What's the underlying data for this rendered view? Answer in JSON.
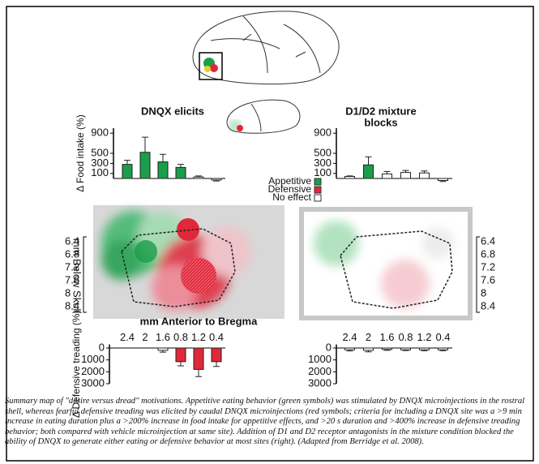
{
  "figure": {
    "left_title": "DNQX elicits",
    "right_title": [
      "D1/D2 mixture",
      "blocks"
    ],
    "legend": [
      {
        "name": "Appetitive",
        "color": "#1a9e4a"
      },
      {
        "name": "Defensive",
        "color": "#e0283a"
      },
      {
        "name": "No effect",
        "color": "#ffffff"
      }
    ],
    "map_y_label": "mm Below Skull",
    "map_y_ticks": [
      "6.4",
      "6.8",
      "7.2",
      "7.6",
      "8",
      "8.4"
    ],
    "map_x_label": "mm Anterior to Bregma",
    "caption": "Summary map of \"desire versus dread\" motivations. Appetitive eating behavior (green symbols) was stimulated by DNQX microinjections in the rostral shell, whereas fearful defensive treading was elicited by caudal DNQX microinjections (red symbols; criteria for including a DNQX site was a >9 min increase in eating duration plus a >200% increase in food intake for appetitive effects, and >20 s duration and >400% increase in defensive treading behavior; both compared with vehicle microinjection at same site). Addition of D1 and D2 receptor antagonists in the mixture condition blocked the ability of DNQX to generate either eating or defensive behavior at most sites (right). (Adapted from Berridge et al. 2008)."
  },
  "chart_data": [
    {
      "type": "bar",
      "ylabel": "Δ Food intake (%)",
      "ylim": [
        0,
        1000
      ],
      "yticks": [
        900,
        500,
        300,
        100
      ],
      "values": [
        280,
        520,
        330,
        220,
        30,
        -30
      ],
      "errors": [
        80,
        300,
        150,
        60,
        20,
        20
      ],
      "colors": [
        "#1a9e4a",
        "#1a9e4a",
        "#1a9e4a",
        "#1a9e4a",
        "#ffffff",
        "#ffffff"
      ]
    },
    {
      "type": "bar",
      "ylim": [
        0,
        1000
      ],
      "yticks": [
        900,
        500,
        300,
        100
      ],
      "values": [
        40,
        270,
        90,
        120,
        110,
        -40
      ],
      "errors": [
        10,
        160,
        50,
        40,
        40,
        20
      ],
      "colors": [
        "#ffffff",
        "#1a9e4a",
        "#ffffff",
        "#ffffff",
        "#ffffff",
        "#ffffff"
      ]
    },
    {
      "type": "bar",
      "inverted": true,
      "ylabel": "Δ Defensive treading (%)",
      "ylim": [
        -300,
        3000
      ],
      "yticks": [
        0,
        1000,
        2000,
        3000
      ],
      "categories": [
        "2.4",
        "2",
        "1.6",
        "0.8",
        "1.2",
        "0.4"
      ],
      "values": [
        null,
        null,
        200,
        1150,
        1800,
        1150
      ],
      "errors": [
        null,
        null,
        150,
        350,
        600,
        400
      ],
      "colors": [
        "#ffffff",
        "#ffffff",
        "#ffffff",
        "#e0283a",
        "#e0283a",
        "#e0283a"
      ]
    },
    {
      "type": "bar",
      "inverted": true,
      "ylim": [
        -300,
        3000
      ],
      "yticks": [
        0,
        1000,
        2000,
        3000
      ],
      "categories": [
        "2.4",
        "2",
        "1.6",
        "0.8",
        "1.2",
        "0.4"
      ],
      "values": [
        150,
        200,
        120,
        150,
        150,
        150
      ],
      "errors": [
        100,
        120,
        80,
        60,
        80,
        80
      ],
      "colors": [
        "#ffffff",
        "#ffffff",
        "#ffffff",
        "#ffffff",
        "#ffffff",
        "#ffffff"
      ]
    }
  ]
}
